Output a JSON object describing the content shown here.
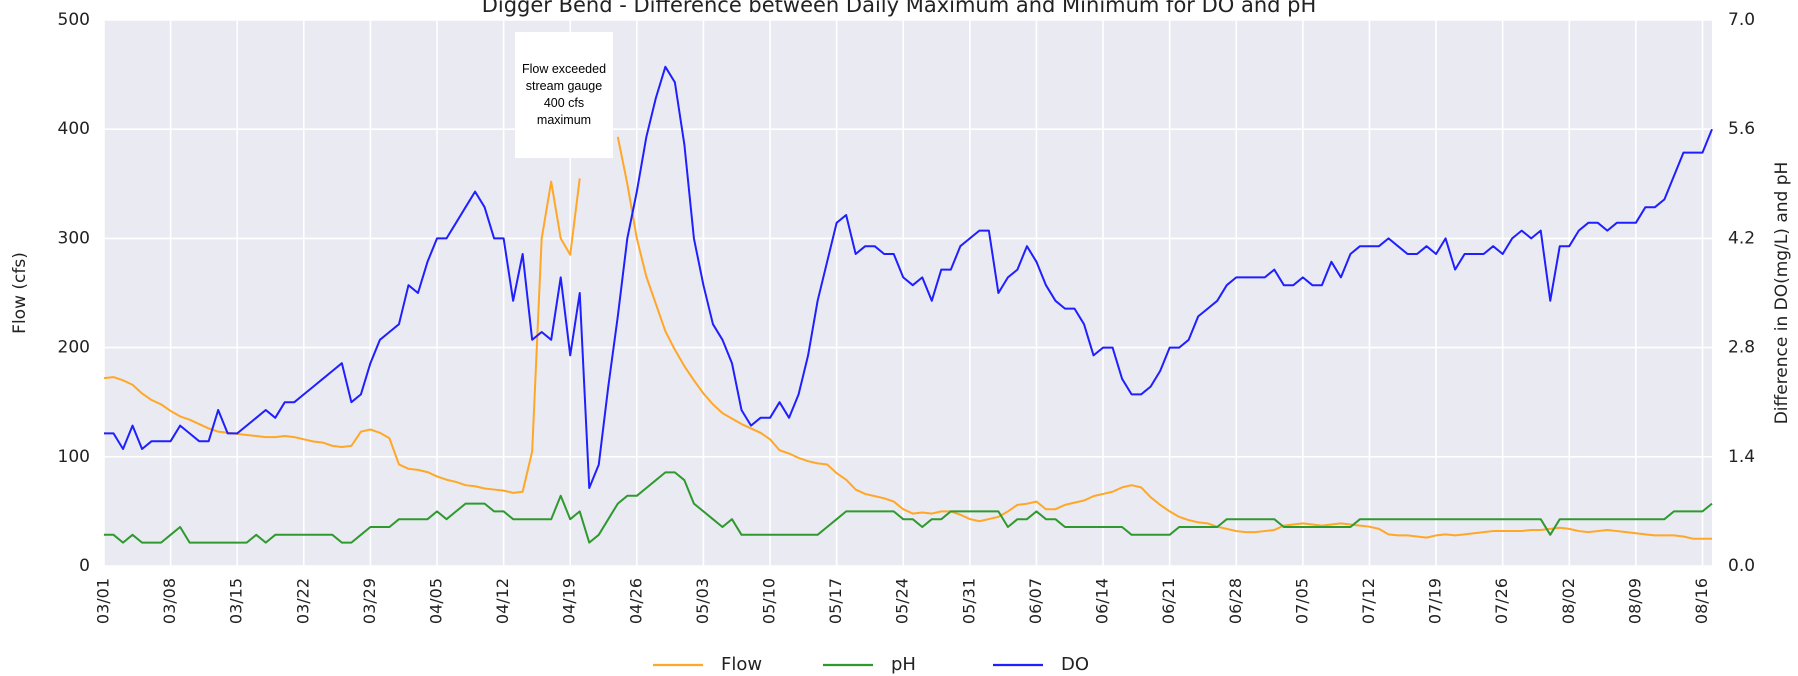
{
  "chart_data": {
    "type": "line",
    "title": "Digger Bend - Difference between Daily Maximum and Minimum for DO and pH",
    "y_label": "Flow (cfs)",
    "y2_label": "Difference in DO(mg/L) and pH",
    "annotation": "Flow exceeded stream gauge 400 cfs maximum",
    "categories": [
      "03/01",
      null,
      null,
      null,
      null,
      null,
      null,
      "03/08",
      null,
      null,
      null,
      null,
      null,
      null,
      "03/15",
      null,
      null,
      null,
      null,
      null,
      null,
      "03/22",
      null,
      null,
      null,
      null,
      null,
      null,
      "03/29",
      null,
      null,
      null,
      null,
      null,
      null,
      "04/05",
      null,
      null,
      null,
      null,
      null,
      null,
      "04/12",
      null,
      null,
      null,
      null,
      null,
      null,
      "04/19",
      null,
      null,
      null,
      null,
      null,
      null,
      "04/26",
      null,
      null,
      null,
      null,
      null,
      null,
      "05/03",
      null,
      null,
      null,
      null,
      null,
      null,
      "05/10",
      null,
      null,
      null,
      null,
      null,
      null,
      "05/17",
      null,
      null,
      null,
      null,
      null,
      null,
      "05/24",
      null,
      null,
      null,
      null,
      null,
      null,
      "05/31",
      null,
      null,
      null,
      null,
      null,
      null,
      "06/07",
      null,
      null,
      null,
      null,
      null,
      null,
      "06/14",
      null,
      null,
      null,
      null,
      null,
      null,
      "06/21",
      null,
      null,
      null,
      null,
      null,
      null,
      "06/28",
      null,
      null,
      null,
      null,
      null,
      null,
      "07/05",
      null,
      null,
      null,
      null,
      null,
      null,
      "07/12",
      null,
      null,
      null,
      null,
      null,
      null,
      "07/19",
      null,
      null,
      null,
      null,
      null,
      null,
      "07/26",
      null,
      null,
      null,
      null,
      null,
      null,
      "08/02",
      null,
      null,
      null,
      null,
      null,
      null,
      "08/09",
      null,
      null,
      null,
      null,
      null,
      null,
      "08/16",
      null
    ],
    "series": [
      {
        "name": "Flow",
        "color": "#ffa726",
        "axis": "y",
        "values": [
          172,
          173,
          170,
          166,
          158,
          152,
          148,
          142,
          137,
          134,
          130,
          126,
          123,
          122,
          121,
          120,
          119,
          118,
          118,
          119,
          118,
          116,
          114,
          113,
          110,
          109,
          110,
          123,
          125,
          122,
          117,
          93,
          89,
          88,
          86,
          82,
          79,
          77,
          74,
          73,
          71,
          70,
          69,
          67,
          68,
          105,
          300,
          352,
          300,
          285,
          355,
          null,
          null,
          null,
          393,
          350,
          300,
          265,
          240,
          215,
          198,
          183,
          170,
          158,
          148,
          140,
          135,
          130,
          126,
          122,
          116,
          106,
          103,
          99,
          96,
          94,
          93,
          85,
          79,
          70,
          66,
          64,
          62,
          59,
          52,
          48,
          49,
          48,
          50,
          50,
          47,
          43,
          41,
          43,
          45,
          50,
          56,
          57,
          59,
          52,
          52,
          56,
          58,
          60,
          64,
          66,
          68,
          72,
          74,
          72,
          63,
          56,
          50,
          45,
          42,
          40,
          39,
          36,
          34,
          32,
          31,
          31,
          32,
          33,
          37,
          38,
          39,
          38,
          37,
          38,
          39,
          38,
          37,
          36,
          34,
          29,
          28,
          28,
          27,
          26,
          28,
          29,
          28,
          29,
          30,
          31,
          32,
          32,
          32,
          32,
          33,
          33,
          34,
          35,
          34,
          32,
          31,
          32,
          33,
          32,
          31,
          30,
          29,
          28,
          28,
          28,
          27,
          25,
          25,
          25
        ]
      },
      {
        "name": "pH",
        "color": "#2e9a2e",
        "axis": "y2",
        "values": [
          0.4,
          0.4,
          0.3,
          0.4,
          0.3,
          0.3,
          0.3,
          0.4,
          0.5,
          0.3,
          0.3,
          0.3,
          0.3,
          0.3,
          0.3,
          0.3,
          0.4,
          0.3,
          0.4,
          0.4,
          0.4,
          0.4,
          0.4,
          0.4,
          0.4,
          0.3,
          0.3,
          0.4,
          0.5,
          0.5,
          0.5,
          0.6,
          0.6,
          0.6,
          0.6,
          0.7,
          0.6,
          0.7,
          0.8,
          0.8,
          0.8,
          0.7,
          0.7,
          0.6,
          0.6,
          0.6,
          0.6,
          0.6,
          0.9,
          0.6,
          0.7,
          0.3,
          0.4,
          0.6,
          0.8,
          0.9,
          0.9,
          1.0,
          1.1,
          1.2,
          1.2,
          1.1,
          0.8,
          0.7,
          0.6,
          0.5,
          0.6,
          0.4,
          0.4,
          0.4,
          0.4,
          0.4,
          0.4,
          0.4,
          0.4,
          0.4,
          0.5,
          0.6,
          0.7,
          0.7,
          0.7,
          0.7,
          0.7,
          0.7,
          0.6,
          0.6,
          0.5,
          0.6,
          0.6,
          0.7,
          0.7,
          0.7,
          0.7,
          0.7,
          0.7,
          0.5,
          0.6,
          0.6,
          0.7,
          0.6,
          0.6,
          0.5,
          0.5,
          0.5,
          0.5,
          0.5,
          0.5,
          0.5,
          0.4,
          0.4,
          0.4,
          0.4,
          0.4,
          0.5,
          0.5,
          0.5,
          0.5,
          0.5,
          0.6,
          0.6,
          0.6,
          0.6,
          0.6,
          0.6,
          0.5,
          0.5,
          0.5,
          0.5,
          0.5,
          0.5,
          0.5,
          0.5,
          0.6,
          0.6,
          0.6,
          0.6,
          0.6,
          0.6,
          0.6,
          0.6,
          0.6,
          0.6,
          0.6,
          0.6,
          0.6,
          0.6,
          0.6,
          0.6,
          0.6,
          0.6,
          0.6,
          0.6,
          0.4,
          0.6,
          0.6,
          0.6,
          0.6,
          0.6,
          0.6,
          0.6,
          0.6,
          0.6,
          0.6,
          0.6,
          0.6,
          0.7,
          0.7,
          0.7,
          0.7,
          0.8
        ]
      },
      {
        "name": "DO",
        "color": "#1f1fff",
        "axis": "y2",
        "values": [
          1.7,
          1.7,
          1.5,
          1.8,
          1.5,
          1.6,
          1.6,
          1.6,
          1.8,
          1.7,
          1.6,
          1.6,
          2.0,
          1.7,
          1.7,
          1.8,
          1.9,
          2.0,
          1.9,
          2.1,
          2.1,
          2.2,
          2.3,
          2.4,
          2.5,
          2.6,
          2.1,
          2.2,
          2.6,
          2.9,
          3.0,
          3.1,
          3.6,
          3.5,
          3.9,
          4.2,
          4.2,
          4.4,
          4.6,
          4.8,
          4.6,
          4.2,
          4.2,
          3.4,
          4.0,
          2.9,
          3.0,
          2.9,
          3.7,
          2.7,
          3.5,
          1.0,
          1.3,
          2.3,
          3.2,
          4.2,
          4.8,
          5.5,
          6.0,
          6.4,
          6.2,
          5.4,
          4.2,
          3.6,
          3.1,
          2.9,
          2.6,
          2.0,
          1.8,
          1.9,
          1.9,
          2.1,
          1.9,
          2.2,
          2.7,
          3.4,
          3.9,
          4.4,
          4.5,
          4.0,
          4.1,
          4.1,
          4.0,
          4.0,
          3.7,
          3.6,
          3.7,
          3.4,
          3.8,
          3.8,
          4.1,
          4.2,
          4.3,
          4.3,
          3.5,
          3.7,
          3.8,
          4.1,
          3.9,
          3.6,
          3.4,
          3.3,
          3.3,
          3.1,
          2.7,
          2.8,
          2.8,
          2.4,
          2.2,
          2.2,
          2.3,
          2.5,
          2.8,
          2.8,
          2.9,
          3.2,
          3.3,
          3.4,
          3.6,
          3.7,
          3.7,
          3.7,
          3.7,
          3.8,
          3.6,
          3.6,
          3.7,
          3.6,
          3.6,
          3.9,
          3.7,
          4.0,
          4.1,
          4.1,
          4.1,
          4.2,
          4.1,
          4.0,
          4.0,
          4.1,
          4.0,
          4.2,
          3.8,
          4.0,
          4.0,
          4.0,
          4.1,
          4.0,
          4.2,
          4.3,
          4.2,
          4.3,
          3.4,
          4.1,
          4.1,
          4.3,
          4.4,
          4.4,
          4.3,
          4.4,
          4.4,
          4.4,
          4.6,
          4.6,
          4.7,
          5.0,
          5.3,
          5.3,
          5.3,
          5.6
        ]
      }
    ],
    "ylim": [
      0,
      500
    ],
    "yticks": [
      0,
      100,
      200,
      300,
      400,
      500
    ],
    "y2lim": [
      0,
      7
    ],
    "y2ticks": [
      {
        "value": 0,
        "label": "0.0"
      },
      1.4,
      2.8,
      4.2,
      5.6,
      {
        "value": 7,
        "label": "7.0"
      }
    ],
    "grid": true,
    "legend": "lower center"
  }
}
